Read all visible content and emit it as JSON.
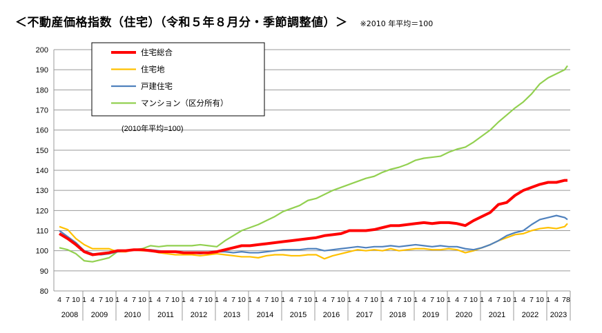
{
  "title": "＜不動産価格指数（住宅）（令和５年８月分・季節調整値）＞",
  "note": "※2010 年平均＝100",
  "chart_data": {
    "type": "line",
    "title": "",
    "annotation": "(2010年平均=100)",
    "xlabel": "",
    "ylabel": "",
    "ylim": [
      80,
      200
    ],
    "yticks": [
      80,
      90,
      100,
      110,
      120,
      130,
      140,
      150,
      160,
      170,
      180,
      190,
      200
    ],
    "grid": true,
    "legend_position": "top-left",
    "x_month_ticks": [
      "1",
      "4",
      "7",
      "10"
    ],
    "last_month_label": "78",
    "years": [
      "2008",
      "2009",
      "2010",
      "2011",
      "2012",
      "2013",
      "2014",
      "2015",
      "2016",
      "2017",
      "2018",
      "2019",
      "2020",
      "2021",
      "2022",
      "2023"
    ],
    "x": [
      "2008-04",
      "2008-07",
      "2008-10",
      "2009-01",
      "2009-04",
      "2009-07",
      "2009-10",
      "2010-01",
      "2010-04",
      "2010-07",
      "2010-10",
      "2011-01",
      "2011-04",
      "2011-07",
      "2011-10",
      "2012-01",
      "2012-04",
      "2012-07",
      "2012-10",
      "2013-01",
      "2013-04",
      "2013-07",
      "2013-10",
      "2014-01",
      "2014-04",
      "2014-07",
      "2014-10",
      "2015-01",
      "2015-04",
      "2015-07",
      "2015-10",
      "2016-01",
      "2016-04",
      "2016-07",
      "2016-10",
      "2017-01",
      "2017-04",
      "2017-07",
      "2017-10",
      "2018-01",
      "2018-04",
      "2018-07",
      "2018-10",
      "2019-01",
      "2019-04",
      "2019-07",
      "2019-10",
      "2020-01",
      "2020-04",
      "2020-07",
      "2020-10",
      "2021-01",
      "2021-04",
      "2021-07",
      "2021-10",
      "2022-01",
      "2022-04",
      "2022-07",
      "2022-10",
      "2023-01",
      "2023-04",
      "2023-07",
      "2023-08"
    ],
    "series": [
      {
        "name": "住宅総合",
        "color": "#ff0000",
        "width": 4,
        "values": [
          108.5,
          106,
          103,
          99.5,
          98,
          98.5,
          99,
          100,
          100,
          100.5,
          100.5,
          100,
          99.5,
          99.5,
          99.5,
          99,
          99,
          99,
          99,
          99.5,
          100.5,
          101.5,
          102.5,
          102.5,
          103,
          103.5,
          104,
          104.5,
          105,
          105.5,
          106,
          106.5,
          107.5,
          108,
          108.5,
          110,
          110,
          110,
          110.5,
          111.5,
          112.5,
          112.5,
          113,
          113.5,
          114,
          113.5,
          114,
          114,
          113.5,
          112.5,
          115,
          117,
          119,
          123,
          124,
          127.5,
          130,
          131.5,
          133,
          134,
          134,
          135,
          135
        ]
      },
      {
        "name": "住宅地",
        "color": "#ffc000",
        "width": 2.2,
        "values": [
          112,
          110.5,
          106,
          103,
          101,
          101,
          101,
          99.5,
          99.5,
          100.5,
          100,
          100,
          99,
          98.5,
          98,
          98,
          98,
          97.5,
          98,
          98.5,
          98,
          97.5,
          97,
          97,
          96.5,
          97.5,
          98,
          98,
          97.5,
          97.5,
          98,
          98,
          96,
          97.5,
          98.5,
          99.5,
          100.5,
          100,
          100.5,
          100,
          101,
          100,
          100.5,
          101,
          101,
          100.5,
          100.5,
          101,
          100.5,
          99,
          100,
          101.5,
          103,
          105,
          106.5,
          108,
          108.5,
          110,
          111,
          111.5,
          111,
          112,
          113.5
        ]
      },
      {
        "name": "戸建住宅",
        "color": "#4f81bd",
        "width": 2.2,
        "values": [
          110,
          107,
          104,
          100,
          98.5,
          98,
          98.5,
          99.5,
          100,
          100.5,
          100.5,
          100.5,
          100,
          99.5,
          99.5,
          99,
          99,
          98.5,
          99,
          99.5,
          99.5,
          99,
          99.5,
          99,
          99,
          99.5,
          100,
          100.5,
          100.5,
          100.5,
          101,
          101,
          100,
          100.5,
          101,
          101.5,
          102,
          101.5,
          102,
          102,
          102.5,
          102,
          102.5,
          103,
          102.5,
          102,
          102.5,
          102,
          102,
          101,
          100.5,
          101.5,
          103,
          105,
          107.5,
          109,
          110,
          113,
          115.5,
          116.5,
          117.5,
          116.5,
          115.5
        ]
      },
      {
        "name": "マンション（区分所有）",
        "color": "#92d050",
        "width": 2.2,
        "values": [
          101.5,
          100.5,
          98.5,
          95,
          94.5,
          95.5,
          96.5,
          99.5,
          100,
          100.5,
          101,
          102.5,
          102,
          102.5,
          102.5,
          102.5,
          102.5,
          103,
          102.5,
          102,
          105,
          107.5,
          110,
          111.5,
          113,
          115,
          117,
          119.5,
          121,
          122.5,
          125,
          126,
          128,
          130,
          131.5,
          133,
          134.5,
          136,
          137,
          139,
          140.5,
          141.5,
          143,
          145,
          146,
          146.5,
          147,
          149,
          150.5,
          151.5,
          154,
          157,
          160,
          164,
          167.5,
          171,
          174,
          178,
          183,
          186,
          188,
          190,
          192
        ]
      }
    ]
  }
}
